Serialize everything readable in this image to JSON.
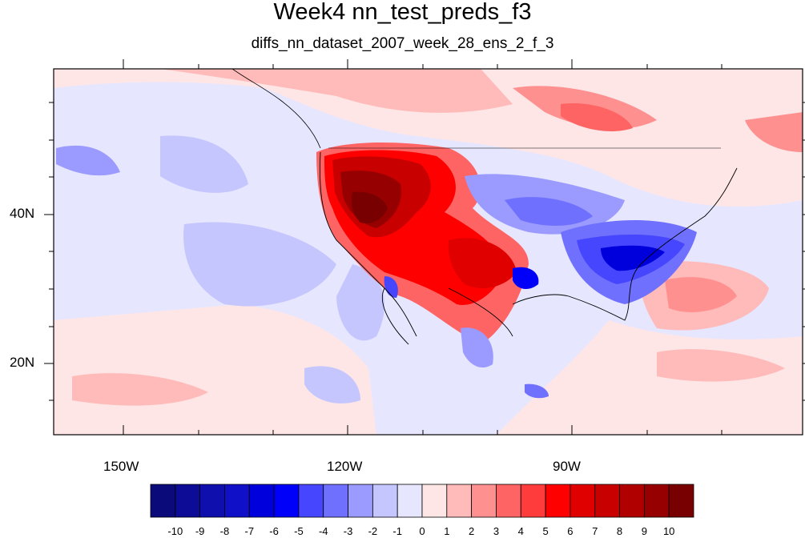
{
  "title": "Week4 nn_test_preds_f3",
  "subtitle": "diffs_nn_dataset_2007_week_28_ens_2_f_3",
  "y_labels": [
    "40N",
    "20N"
  ],
  "x_labels": [
    "150W",
    "120W",
    "90W"
  ],
  "colorbar": {
    "labels": [
      "-10",
      "-9",
      "-8",
      "-7",
      "-6",
      "-5",
      "-4",
      "-3",
      "-2",
      "-1",
      "0",
      "1",
      "2",
      "3",
      "4",
      "5",
      "6",
      "7",
      "8",
      "9",
      "10"
    ],
    "colors": [
      "#0a0a7a",
      "#0c0c96",
      "#0f0fae",
      "#1010c8",
      "#0000dc",
      "#0000fa",
      "#4646ff",
      "#7070ff",
      "#9a9aff",
      "#c6c6ff",
      "#e6e6ff",
      "#ffe6e6",
      "#ffbaba",
      "#ff9090",
      "#ff6464",
      "#ff3c3c",
      "#ff0000",
      "#e00000",
      "#c80000",
      "#b00000",
      "#960000",
      "#780000"
    ]
  },
  "map": {
    "ocean_color": "#e6e6ff",
    "lon_range": [
      -160,
      -60
    ],
    "lat_range": [
      10,
      60
    ]
  }
}
